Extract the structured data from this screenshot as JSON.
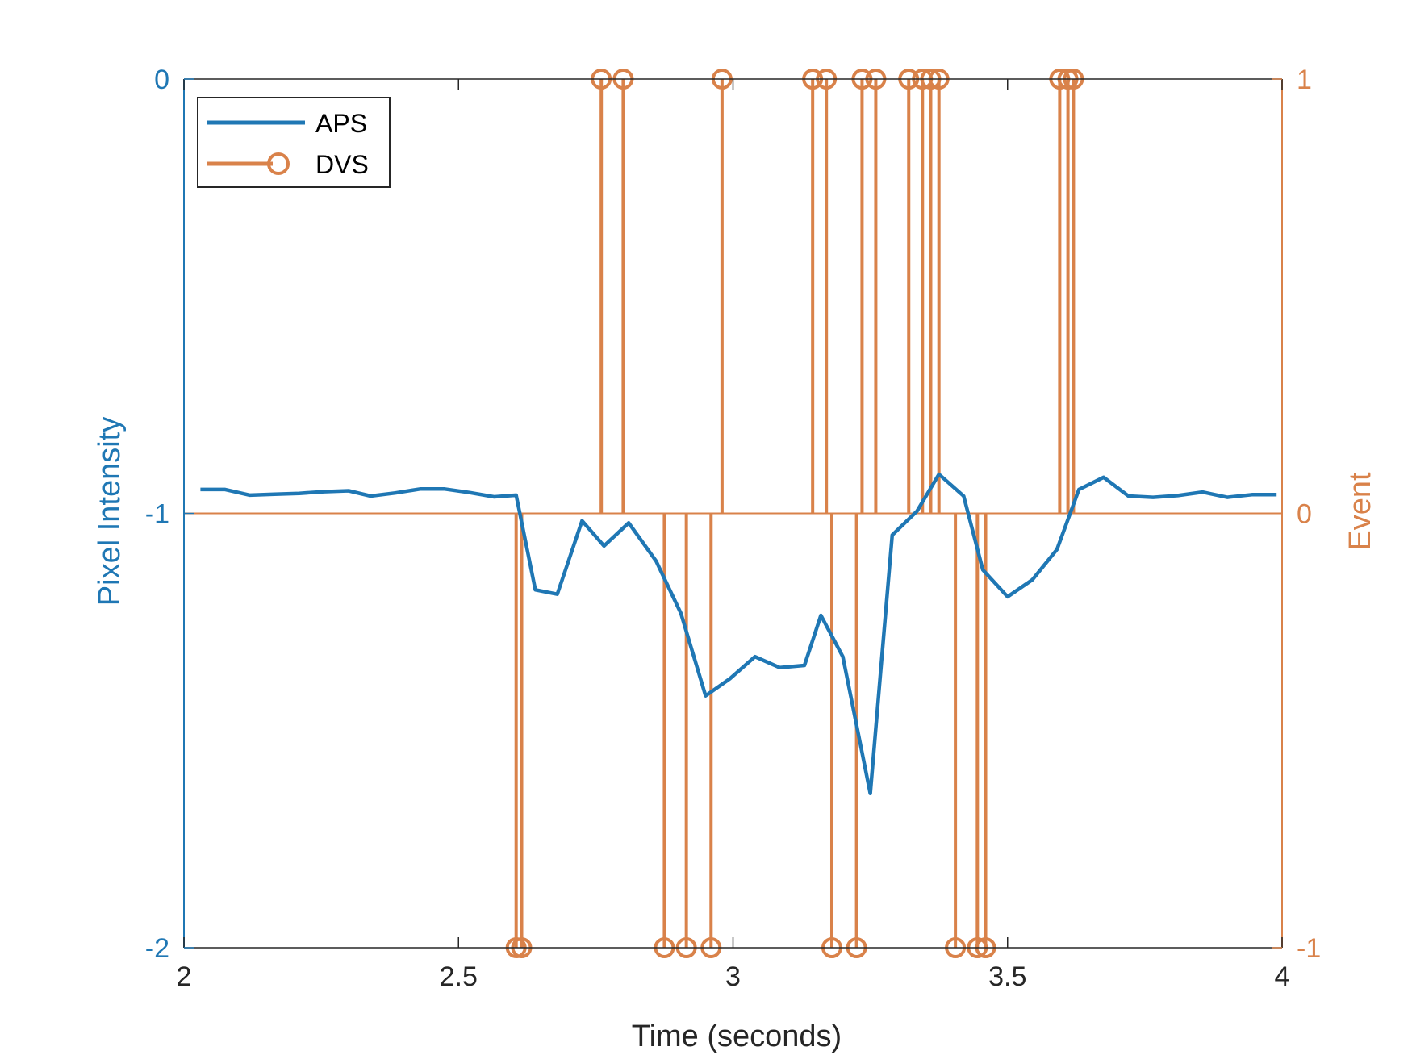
{
  "colors": {
    "aps": "#1f77b4",
    "dvs": "#d9824a",
    "left_axis": "#1f77b4",
    "right_axis": "#d9824a",
    "bottom_axis": "#262626",
    "frame": "#262626"
  },
  "chart_data": {
    "type": "line",
    "xlabel": "Time (seconds)",
    "ylabel": "Pixel Intensity",
    "ylabel_right": "Event",
    "xlim": [
      2,
      4
    ],
    "ylim": [
      -2,
      0
    ],
    "ylim_right": [
      -1,
      1
    ],
    "x_ticks": [
      "2",
      "2.5",
      "3",
      "3.5",
      "4"
    ],
    "y_ticks": [
      "-2",
      "-1",
      "0"
    ],
    "y_ticks_right": [
      "-1",
      "0",
      "1"
    ],
    "grid": false,
    "legend": {
      "position": "top-left",
      "entries": [
        "APS",
        "DVS"
      ]
    },
    "series": [
      {
        "name": "APS",
        "axis": "left",
        "style": "line",
        "x": [
          2.03,
          2.075,
          2.12,
          2.165,
          2.21,
          2.255,
          2.3,
          2.34,
          2.385,
          2.43,
          2.475,
          2.52,
          2.565,
          2.605,
          2.64,
          2.68,
          2.725,
          2.765,
          2.81,
          2.86,
          2.905,
          2.95,
          2.995,
          3.04,
          3.085,
          3.13,
          3.16,
          3.2,
          3.25,
          3.29,
          3.335,
          3.375,
          3.42,
          3.455,
          3.5,
          3.545,
          3.59,
          3.63,
          3.675,
          3.72,
          3.765,
          3.81,
          3.855,
          3.9,
          3.945,
          3.99
        ],
        "y": [
          -0.945,
          -0.945,
          -0.958,
          -0.956,
          -0.954,
          -0.95,
          -0.948,
          -0.96,
          -0.953,
          -0.944,
          -0.944,
          -0.952,
          -0.962,
          -0.958,
          -1.176,
          -1.186,
          -1.017,
          -1.075,
          -1.022,
          -1.11,
          -1.23,
          -1.42,
          -1.38,
          -1.33,
          -1.355,
          -1.35,
          -1.235,
          -1.33,
          -1.645,
          -1.05,
          -0.995,
          -0.91,
          -0.96,
          -1.13,
          -1.192,
          -1.153,
          -1.083,
          -0.945,
          -0.917,
          -0.96,
          -0.963,
          -0.959,
          -0.951,
          -0.963,
          -0.957,
          -0.957
        ]
      },
      {
        "name": "DVS",
        "axis": "right",
        "style": "stem",
        "x": [
          2.605,
          2.615,
          2.76,
          2.8,
          2.875,
          2.915,
          2.96,
          2.98,
          3.145,
          3.17,
          3.18,
          3.225,
          3.235,
          3.26,
          3.32,
          3.345,
          3.36,
          3.375,
          3.405,
          3.445,
          3.46,
          3.595,
          3.61,
          3.62
        ],
        "y": [
          -1,
          -1,
          1,
          1,
          -1,
          -1,
          -1,
          1,
          1,
          1,
          -1,
          -1,
          1,
          1,
          1,
          1,
          1,
          1,
          -1,
          -1,
          -1,
          1,
          1,
          1
        ]
      }
    ]
  }
}
